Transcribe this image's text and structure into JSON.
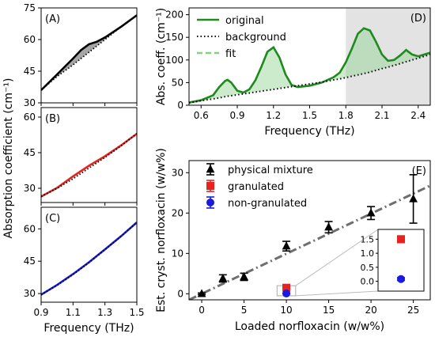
{
  "chart_data": [
    {
      "id": "A",
      "type": "area",
      "panel_label": "(A)",
      "xlim": [
        0.9,
        1.5
      ],
      "ylim": [
        30,
        75
      ],
      "yticks": [
        "30",
        "45",
        "60",
        "75"
      ],
      "x": [
        0.9,
        1.0,
        1.1,
        1.15,
        1.2,
        1.25,
        1.3,
        1.35,
        1.4,
        1.5
      ],
      "series": [
        {
          "role": "original",
          "color": "#000000",
          "values": [
            36.0,
            43.5,
            51.0,
            55.0,
            57.8,
            59.0,
            61.0,
            63.5,
            66.0,
            71.5
          ]
        },
        {
          "role": "background",
          "color": "#000000",
          "values": [
            36.0,
            42.5,
            48.0,
            51.0,
            54.0,
            57.0,
            60.0,
            63.0,
            66.0,
            71.5
          ]
        }
      ],
      "fill_color": "#888888"
    },
    {
      "id": "B",
      "type": "line",
      "panel_label": "(B)",
      "xlim": [
        0.9,
        1.5
      ],
      "ylim": [
        24,
        64
      ],
      "yticks": [
        "30",
        "45",
        "60"
      ],
      "x": [
        0.9,
        1.0,
        1.1,
        1.2,
        1.3,
        1.4,
        1.5
      ],
      "series": [
        {
          "role": "original",
          "color": "#e8231f",
          "values": [
            26.5,
            30.2,
            35.0,
            39.5,
            43.5,
            48.0,
            53.0
          ]
        },
        {
          "role": "background",
          "color": "#000000",
          "values": [
            26.5,
            30.0,
            34.0,
            38.5,
            43.0,
            47.8,
            53.0
          ]
        }
      ]
    },
    {
      "id": "C",
      "type": "line",
      "panel_label": "(C)",
      "xlim": [
        0.9,
        1.5
      ],
      "ylim": [
        26,
        70
      ],
      "yticks": [
        "30",
        "45",
        "60"
      ],
      "x": [
        0.9,
        1.0,
        1.1,
        1.2,
        1.3,
        1.4,
        1.5
      ],
      "series": [
        {
          "role": "original",
          "color": "#1a1adf",
          "values": [
            29.5,
            34.0,
            39.0,
            44.5,
            50.5,
            56.5,
            63.0
          ]
        },
        {
          "role": "background",
          "color": "#000000",
          "values": [
            29.5,
            33.8,
            38.8,
            44.3,
            50.3,
            56.4,
            63.0
          ]
        }
      ],
      "xlabel": "Frequency (THz)",
      "xticks": [
        "0.9",
        "1.1",
        "1.3",
        "1.5"
      ]
    },
    {
      "id": "D",
      "type": "line",
      "panel_label": "(D)",
      "ylabel": "Abs. coeff. (cm⁻¹)",
      "xlabel": "Frequency (THz)",
      "xlim": [
        0.5,
        2.5
      ],
      "ylim": [
        0,
        215
      ],
      "xticks": [
        "0.6",
        "0.9",
        "1.2",
        "1.5",
        "1.8",
        "2.1",
        "2.4"
      ],
      "yticks": [
        "0",
        "50",
        "100",
        "150",
        "200"
      ],
      "shaded_region": [
        1.8,
        2.5
      ],
      "legend": {
        "position": "top-left",
        "entries": [
          "original",
          "background",
          "fit"
        ]
      },
      "x": [
        0.5,
        0.6,
        0.7,
        0.75,
        0.8,
        0.82,
        0.85,
        0.9,
        0.95,
        1.0,
        1.05,
        1.1,
        1.15,
        1.2,
        1.25,
        1.3,
        1.35,
        1.4,
        1.5,
        1.6,
        1.7,
        1.75,
        1.8,
        1.85,
        1.9,
        1.95,
        2.0,
        2.05,
        2.1,
        2.15,
        2.2,
        2.25,
        2.3,
        2.35,
        2.4,
        2.45,
        2.5
      ],
      "series": [
        {
          "name": "original",
          "color": "#1f8a1f",
          "values": [
            6,
            11,
            22,
            40,
            54,
            56,
            50,
            32,
            28,
            35,
            55,
            85,
            118,
            128,
            105,
            68,
            45,
            40,
            43,
            50,
            62,
            72,
            95,
            125,
            158,
            170,
            165,
            140,
            112,
            98,
            100,
            110,
            122,
            112,
            108,
            112,
            116
          ]
        },
        {
          "name": "background",
          "color": "#000000",
          "values": [
            5,
            10,
            14,
            16,
            19,
            20,
            21,
            23,
            25,
            27,
            29,
            31,
            33,
            35,
            37,
            39,
            41,
            43,
            47,
            51,
            56,
            58,
            61,
            64,
            67,
            70,
            73,
            77,
            81,
            84,
            88,
            92,
            96,
            100,
            104,
            108,
            112
          ]
        },
        {
          "name": "fit",
          "color": "#7fd37f",
          "values": [
            6,
            11,
            22,
            40,
            54,
            56,
            50,
            32,
            28,
            35,
            55,
            85,
            118,
            128,
            105,
            68,
            45,
            40,
            43,
            50,
            62,
            72,
            95,
            125,
            158,
            170,
            165,
            140,
            112,
            98,
            100,
            110,
            122,
            112,
            108,
            112,
            116
          ]
        }
      ]
    },
    {
      "id": "E",
      "type": "scatter",
      "panel_label": "(E)",
      "ylabel": "Est. cryst. norfloxacin (w/w%)",
      "xlabel": "Loaded norfloxacin (w/w%)",
      "xlim": [
        -1.5,
        27
      ],
      "ylim": [
        -1.5,
        33
      ],
      "xticks": [
        "0",
        "5",
        "10",
        "15",
        "20",
        "25"
      ],
      "yticks": [
        "0",
        "10",
        "20",
        "30"
      ],
      "legend": {
        "position": "top-left",
        "entries": [
          "physical mixture",
          "granulated",
          "non-granulated"
        ]
      },
      "trend_line": {
        "style": "dash-dot",
        "color": "#6e6e6e",
        "x": [
          -1.5,
          27
        ],
        "y": [
          -1.5,
          26.8
        ]
      },
      "series": [
        {
          "name": "physical mixture",
          "color": "#000000",
          "marker": "triangle",
          "x": [
            0,
            2.5,
            5,
            10,
            15,
            20,
            25
          ],
          "y": [
            0,
            3.8,
            4.2,
            11.8,
            16.5,
            20.0,
            23.5
          ],
          "err": [
            0.2,
            0.9,
            0.9,
            1.2,
            1.4,
            1.6,
            6.0
          ]
        },
        {
          "name": "granulated",
          "color": "#e8231f",
          "marker": "square",
          "x": [
            10
          ],
          "y": [
            1.5
          ],
          "err": [
            0.12
          ]
        },
        {
          "name": "non-granulated",
          "color": "#1a1adf",
          "marker": "circle",
          "x": [
            10
          ],
          "y": [
            0.08
          ],
          "err": [
            0.05
          ]
        }
      ],
      "inset": {
        "ylim": [
          -0.35,
          1.85
        ],
        "yticks": [
          "0.0",
          "0.5",
          "1.0",
          "1.5"
        ]
      }
    }
  ],
  "shared_ylabel": "Absorption coefficient (cm⁻¹)"
}
